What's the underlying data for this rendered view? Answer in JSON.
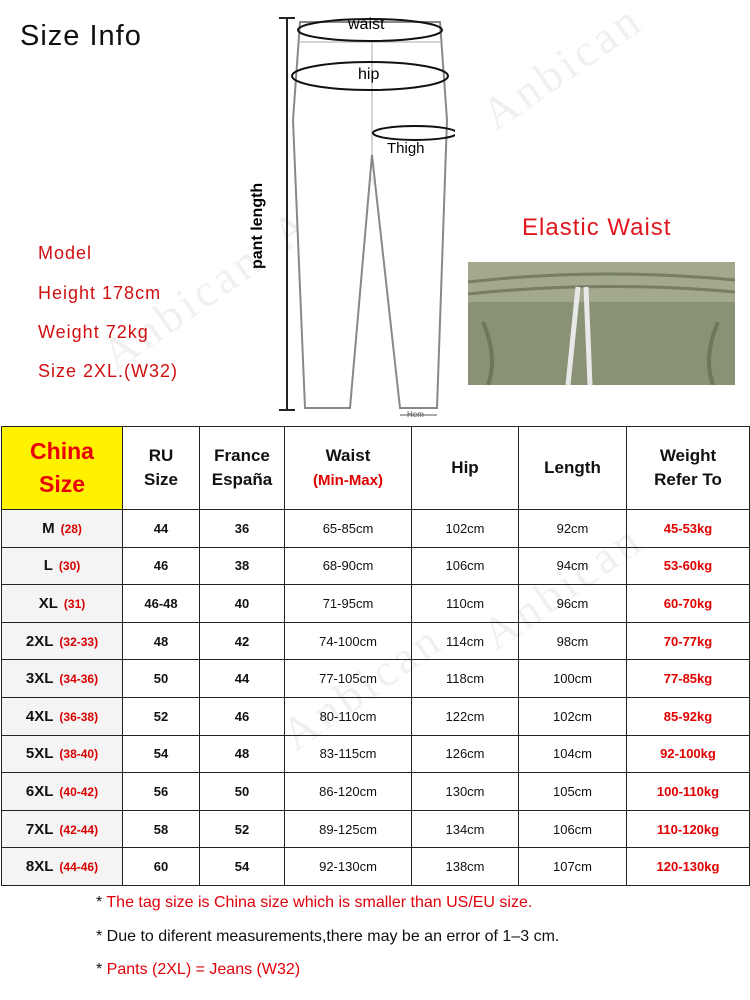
{
  "title": "Size Info",
  "diagram": {
    "waist": "waist",
    "hip": "hip",
    "thigh": "Thigh",
    "pant_length": "pant length",
    "hem": "Hem"
  },
  "model": {
    "label": "Model",
    "height": "Height 178cm",
    "weight": "Weight 72kg",
    "size": "Size 2XL.(W32)"
  },
  "elastic_label": "Elastic Waist",
  "watermark": "Anbican",
  "table": {
    "headers": {
      "china": [
        "China",
        "Size"
      ],
      "ru": [
        "RU",
        "Size"
      ],
      "france": [
        "France",
        "España"
      ],
      "waist": "Waist",
      "waist_sub": "(Min-Max)",
      "hip": "Hip",
      "length": "Length",
      "weight": [
        "Weight",
        "Refer To"
      ]
    },
    "rows": [
      {
        "size": "M",
        "code": "(28)",
        "ru": "44",
        "fr": "36",
        "waist": "65-85cm",
        "hip": "102cm",
        "length": "92cm",
        "weight": "45-53kg"
      },
      {
        "size": "L",
        "code": "(30)",
        "ru": "46",
        "fr": "38",
        "waist": "68-90cm",
        "hip": "106cm",
        "length": "94cm",
        "weight": "53-60kg"
      },
      {
        "size": "XL",
        "code": "(31)",
        "ru": "46-48",
        "fr": "40",
        "waist": "71-95cm",
        "hip": "110cm",
        "length": "96cm",
        "weight": "60-70kg"
      },
      {
        "size": "2XL",
        "code": "(32-33)",
        "ru": "48",
        "fr": "42",
        "waist": "74-100cm",
        "hip": "114cm",
        "length": "98cm",
        "weight": "70-77kg"
      },
      {
        "size": "3XL",
        "code": "(34-36)",
        "ru": "50",
        "fr": "44",
        "waist": "77-105cm",
        "hip": "118cm",
        "length": "100cm",
        "weight": "77-85kg"
      },
      {
        "size": "4XL",
        "code": "(36-38)",
        "ru": "52",
        "fr": "46",
        "waist": "80-110cm",
        "hip": "122cm",
        "length": "102cm",
        "weight": "85-92kg"
      },
      {
        "size": "5XL",
        "code": "(38-40)",
        "ru": "54",
        "fr": "48",
        "waist": "83-115cm",
        "hip": "126cm",
        "length": "104cm",
        "weight": "92-100kg"
      },
      {
        "size": "6XL",
        "code": "(40-42)",
        "ru": "56",
        "fr": "50",
        "waist": "86-120cm",
        "hip": "130cm",
        "length": "105cm",
        "weight": "100-110kg"
      },
      {
        "size": "7XL",
        "code": "(42-44)",
        "ru": "58",
        "fr": "52",
        "waist": "89-125cm",
        "hip": "134cm",
        "length": "106cm",
        "weight": "110-120kg"
      },
      {
        "size": "8XL",
        "code": "(44-46)",
        "ru": "60",
        "fr": "54",
        "waist": "92-130cm",
        "hip": "138cm",
        "length": "107cm",
        "weight": "120-130kg"
      }
    ]
  },
  "notes": [
    {
      "star": "* ",
      "text": "The tag size is China size which is smaller than US/EU size.",
      "red": true
    },
    {
      "star": "* ",
      "text": "Due to diferent measurements,there may be an error of 1–3 cm.",
      "red": false
    },
    {
      "star": "* ",
      "text": "Pants (2XL) = Jeans (W32)",
      "red": true
    }
  ],
  "colors": {
    "accent_red": "#e00000",
    "header_yellow": "#fff200"
  }
}
